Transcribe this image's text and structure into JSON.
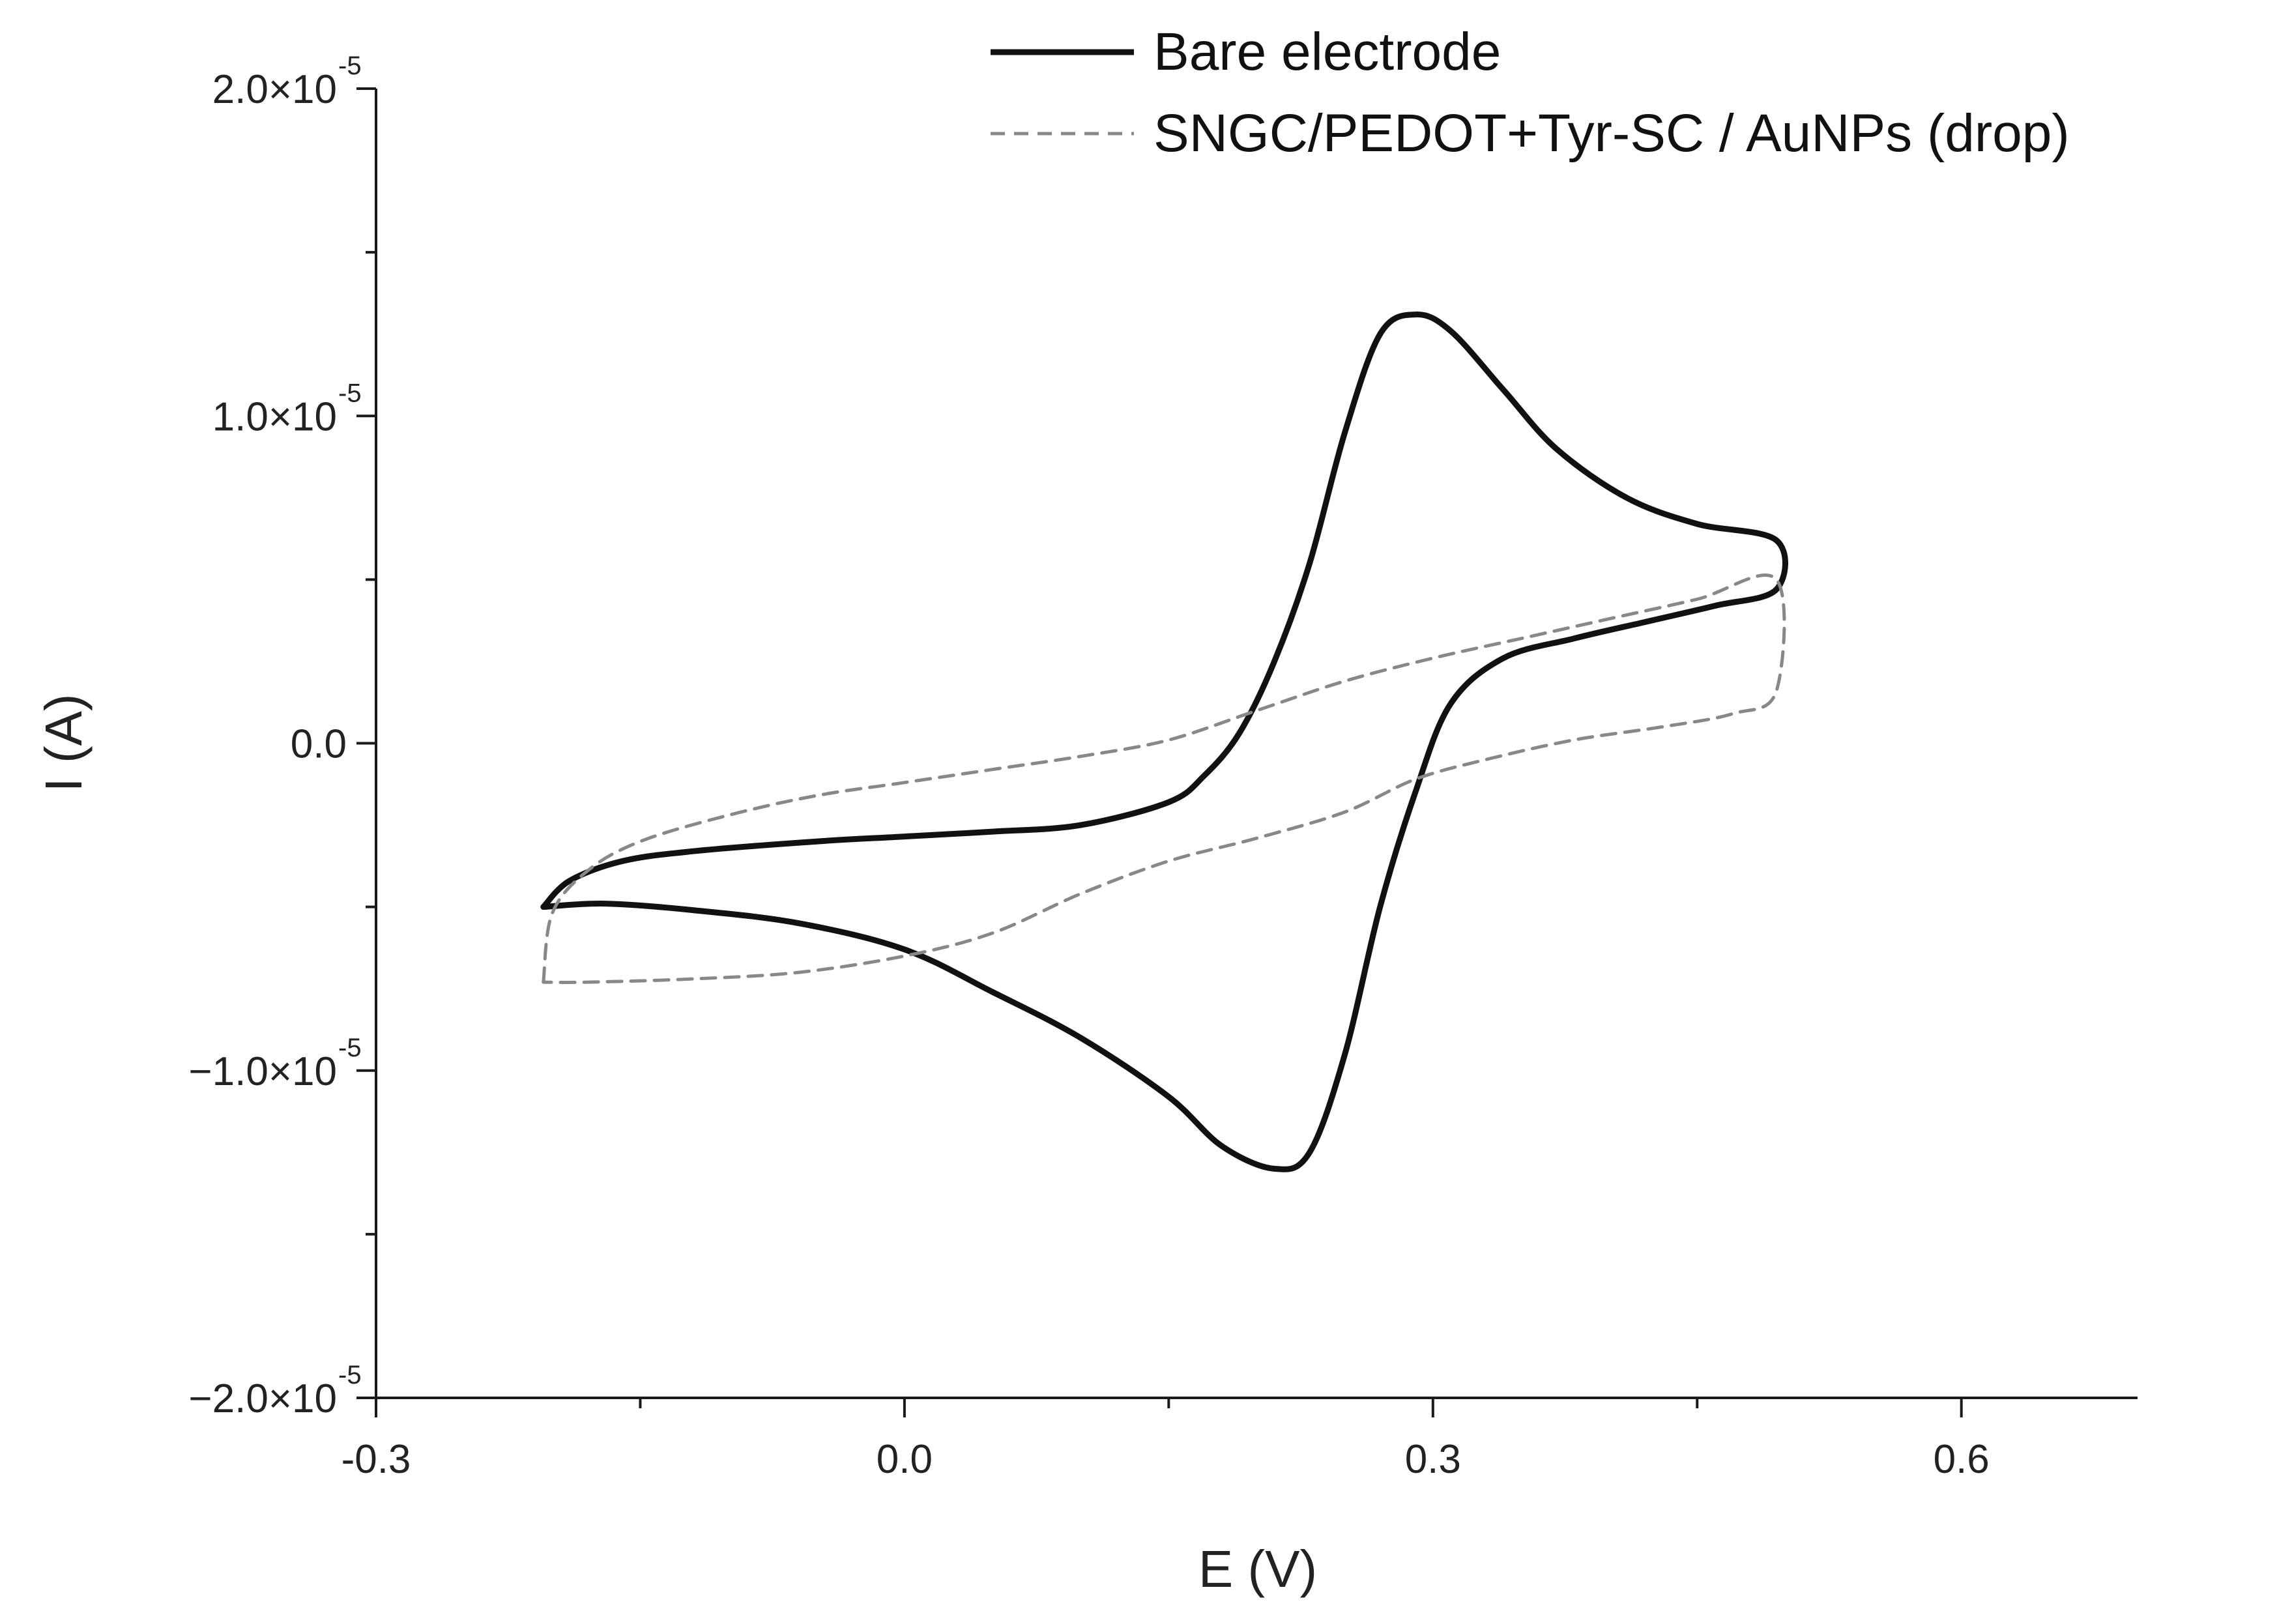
{
  "chart_data": {
    "type": "line",
    "title": "",
    "xlabel": "E (V)",
    "ylabel": "I (A)",
    "xlim": [
      -0.3,
      0.7
    ],
    "ylim": [
      -2e-05,
      2e-05
    ],
    "x_ticks": [
      {
        "value": -0.3,
        "label": "-0.3"
      },
      {
        "value": 0.0,
        "label": "0.0"
      },
      {
        "value": 0.3,
        "label": "0.3"
      },
      {
        "value": 0.6,
        "label": "0.6"
      }
    ],
    "x_minor_ticks": [
      -0.15,
      0.15,
      0.45
    ],
    "y_ticks": [
      {
        "value": 2e-05,
        "mant": "2.0×10",
        "exp": "-5"
      },
      {
        "value": 1e-05,
        "mant": "1.0×10",
        "exp": "-5"
      },
      {
        "value": 0.0,
        "mant": "0.0",
        "exp": ""
      },
      {
        "value": -1e-05,
        "mant": "−1.0×10",
        "exp": "-5"
      },
      {
        "value": -2e-05,
        "mant": "−2.0×10",
        "exp": "-5"
      }
    ],
    "y_minor_ticks": [
      1.5e-05,
      5e-06,
      -5e-06,
      -1.5e-05
    ],
    "legend_position": "top-right",
    "series": [
      {
        "name": "Bare electrode",
        "style": "solid",
        "color": "#111111",
        "points": [
          [
            -0.205,
            -5e-06
          ],
          [
            -0.19,
            -4.2e-06
          ],
          [
            -0.16,
            -3.6e-06
          ],
          [
            -0.12,
            -3.3e-06
          ],
          [
            -0.05,
            -3e-06
          ],
          [
            0.0,
            -2.85e-06
          ],
          [
            0.05,
            -2.7e-06
          ],
          [
            0.1,
            -2.5e-06
          ],
          [
            0.15,
            -1.8e-06
          ],
          [
            0.17,
            -1e-06
          ],
          [
            0.19,
            3e-07
          ],
          [
            0.21,
            2.5e-06
          ],
          [
            0.23,
            5.5e-06
          ],
          [
            0.25,
            9.5e-06
          ],
          [
            0.27,
            1.25e-05
          ],
          [
            0.29,
            1.31e-05
          ],
          [
            0.31,
            1.26e-05
          ],
          [
            0.34,
            1.08e-05
          ],
          [
            0.37,
            9e-06
          ],
          [
            0.41,
            7.5e-06
          ],
          [
            0.45,
            6.7e-06
          ],
          [
            0.495,
            6.2e-06
          ],
          [
            0.495,
            4.7e-06
          ],
          [
            0.46,
            4.2e-06
          ],
          [
            0.42,
            3.7e-06
          ],
          [
            0.38,
            3.2e-06
          ],
          [
            0.34,
            2.6e-06
          ],
          [
            0.31,
            1.2e-06
          ],
          [
            0.29,
            -1.5e-06
          ],
          [
            0.27,
            -5e-06
          ],
          [
            0.25,
            -9.5e-06
          ],
          [
            0.23,
            -1.25e-05
          ],
          [
            0.21,
            -1.3e-05
          ],
          [
            0.18,
            -1.23e-05
          ],
          [
            0.15,
            -1.08e-05
          ],
          [
            0.1,
            -9e-06
          ],
          [
            0.05,
            -7.6e-06
          ],
          [
            0.0,
            -6.3e-06
          ],
          [
            -0.06,
            -5.5e-06
          ],
          [
            -0.12,
            -5.1e-06
          ],
          [
            -0.17,
            -4.9e-06
          ],
          [
            -0.205,
            -5e-06
          ]
        ]
      },
      {
        "name": "SNGC/PEDOT+Tyr-SC / AuNPs (drop)",
        "style": "dashed",
        "color": "#888888",
        "points": [
          [
            -0.205,
            -7.3e-06
          ],
          [
            -0.2,
            -5.2e-06
          ],
          [
            -0.18,
            -3.9e-06
          ],
          [
            -0.15,
            -3e-06
          ],
          [
            -0.1,
            -2.2e-06
          ],
          [
            -0.05,
            -1.6e-06
          ],
          [
            0.0,
            -1.2e-06
          ],
          [
            0.05,
            -8e-07
          ],
          [
            0.1,
            -4e-07
          ],
          [
            0.15,
            1e-07
          ],
          [
            0.2,
            1e-06
          ],
          [
            0.25,
            1.9e-06
          ],
          [
            0.3,
            2.6e-06
          ],
          [
            0.35,
            3.2e-06
          ],
          [
            0.4,
            3.8e-06
          ],
          [
            0.45,
            4.4e-06
          ],
          [
            0.495,
            5e-06
          ],
          [
            0.495,
            1.6e-06
          ],
          [
            0.47,
            9e-07
          ],
          [
            0.43,
            5e-07
          ],
          [
            0.38,
            1e-07
          ],
          [
            0.33,
            -5e-07
          ],
          [
            0.29,
            -1.1e-06
          ],
          [
            0.25,
            -2.1e-06
          ],
          [
            0.2,
            -2.9e-06
          ],
          [
            0.15,
            -3.6e-06
          ],
          [
            0.1,
            -4.6e-06
          ],
          [
            0.05,
            -5.8e-06
          ],
          [
            0.0,
            -6.5e-06
          ],
          [
            -0.06,
            -7e-06
          ],
          [
            -0.12,
            -7.2e-06
          ],
          [
            -0.18,
            -7.3e-06
          ],
          [
            -0.205,
            -7.3e-06
          ]
        ]
      }
    ]
  }
}
